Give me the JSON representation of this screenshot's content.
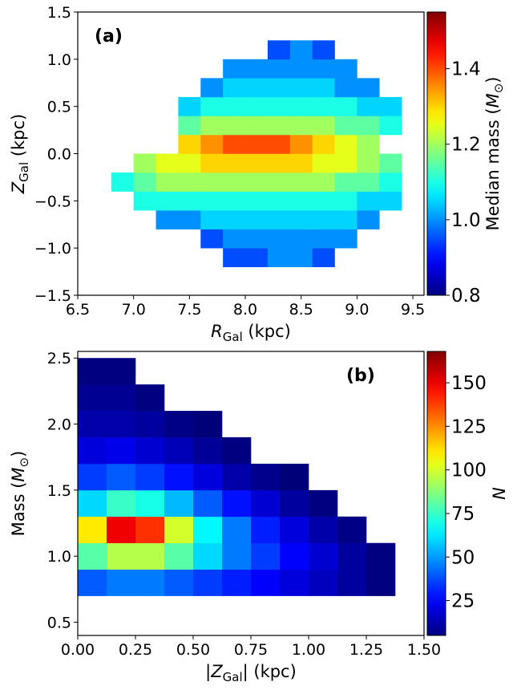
{
  "chart_data": [
    {
      "type": "heatmap",
      "colormap": "jet",
      "annotation": "(a)",
      "xlabel": [
        "R",
        "Gal",
        " (kpc)"
      ],
      "ylabel": [
        "Z",
        "Gal",
        " (kpc)"
      ],
      "colorbar_label": [
        "Median mass (",
        "M",
        "⊙",
        ")"
      ],
      "xlim": [
        6.5,
        9.6
      ],
      "ylim": [
        -1.5,
        1.5
      ],
      "xticks": [
        6.5,
        {
          "value": 7,
          "label": "7.0"
        },
        7.5,
        {
          "value": 8,
          "label": "8.0"
        },
        8.5,
        {
          "value": 9,
          "label": "9.0"
        },
        9.5
      ],
      "yticks": [
        {
          "value": -1.5,
          "label": "−1.5"
        },
        {
          "value": -1,
          "label": "−1.0"
        },
        {
          "value": -0.5,
          "label": "−0.5"
        },
        {
          "value": 0,
          "label": "0.0"
        },
        0.5,
        {
          "value": 1,
          "label": "1.0"
        },
        1.5
      ],
      "clim": [
        0.8,
        1.55
      ],
      "cticks": [
        0.8,
        {
          "value": 1,
          "label": "1.0"
        },
        1.2,
        1.4
      ],
      "x_edges": [
        6.8,
        7.0,
        7.2,
        7.4,
        7.6,
        7.8,
        8.0,
        8.2,
        8.4,
        8.6,
        8.8,
        9.0,
        9.2,
        9.4,
        9.6
      ],
      "y_edges": [
        -1.2,
        -1.0,
        -0.8,
        -0.6,
        -0.4,
        -0.2,
        0,
        0.2,
        0.4,
        0.6,
        0.8,
        1.0,
        1.2
      ],
      "z": [
        [
          null,
          null,
          null,
          null,
          null,
          0.95,
          0.95,
          1.0,
          1.0,
          0.95,
          null,
          null,
          null,
          null
        ],
        [
          null,
          null,
          null,
          null,
          0.95,
          1.0,
          1.0,
          1.0,
          1.0,
          1.0,
          1.0,
          null,
          null,
          null
        ],
        [
          null,
          null,
          1.0,
          1.0,
          1.05,
          1.05,
          1.05,
          1.05,
          1.05,
          1.05,
          1.05,
          1.0,
          null,
          null
        ],
        [
          null,
          1.1,
          1.1,
          1.1,
          1.1,
          1.1,
          1.1,
          1.1,
          1.1,
          1.1,
          1.1,
          1.05,
          1.05,
          null
        ],
        [
          1.1,
          1.15,
          1.2,
          1.2,
          1.2,
          1.2,
          1.2,
          1.2,
          1.2,
          1.2,
          1.15,
          1.15,
          1.1,
          null
        ],
        [
          null,
          1.2,
          1.25,
          1.25,
          1.3,
          1.3,
          1.3,
          1.3,
          1.3,
          1.25,
          1.25,
          1.2,
          1.15,
          null
        ],
        [
          null,
          null,
          null,
          1.3,
          1.35,
          1.4,
          1.4,
          1.4,
          1.35,
          1.3,
          1.25,
          1.2,
          null,
          null
        ],
        [
          null,
          null,
          null,
          1.15,
          1.2,
          1.2,
          1.2,
          1.2,
          1.2,
          1.2,
          1.15,
          1.15,
          1.1,
          null
        ],
        [
          null,
          null,
          null,
          1.05,
          1.1,
          1.1,
          1.1,
          1.1,
          1.1,
          1.1,
          1.1,
          1.05,
          1.05,
          null
        ],
        [
          null,
          null,
          null,
          null,
          1.0,
          1.05,
          1.05,
          1.05,
          1.05,
          1.05,
          1.0,
          1.0,
          null,
          null
        ],
        [
          null,
          null,
          null,
          null,
          null,
          1.0,
          1.0,
          1.0,
          1.0,
          1.0,
          1.0,
          null,
          null,
          null
        ],
        [
          null,
          null,
          null,
          null,
          null,
          null,
          null,
          0.95,
          1.0,
          0.95,
          null,
          null,
          null,
          null
        ]
      ]
    },
    {
      "type": "heatmap",
      "colormap": "jet",
      "annotation": "(b)",
      "xlabel": [
        "|",
        "Z",
        "Gal",
        "| (kpc)"
      ],
      "ylabel": [
        "Mass (",
        "M",
        "⊙",
        ")"
      ],
      "colorbar_label": [
        "N"
      ],
      "xlim": [
        0,
        1.5
      ],
      "ylim": [
        0.4,
        2.55
      ],
      "xticks": [
        {
          "value": 0,
          "label": "0.00"
        },
        {
          "value": 0.25,
          "label": "0.25"
        },
        {
          "value": 0.5,
          "label": "0.50"
        },
        {
          "value": 0.75,
          "label": "0.75"
        },
        {
          "value": 1,
          "label": "1.00"
        },
        {
          "value": 1.25,
          "label": "1.25"
        },
        {
          "value": 1.5,
          "label": "1.50"
        }
      ],
      "yticks": [
        0.5,
        {
          "value": 1,
          "label": "1.0"
        },
        1.5,
        {
          "value": 2,
          "label": "2.0"
        },
        2.5
      ],
      "clim": [
        5,
        168
      ],
      "cticks": [
        25,
        50,
        75,
        100,
        125,
        150
      ],
      "x_edges": [
        0,
        0.125,
        0.25,
        0.375,
        0.5,
        0.625,
        0.75,
        0.875,
        1.0,
        1.125,
        1.25,
        1.375,
        1.5
      ],
      "y_edges": [
        0.7,
        0.9,
        1.1,
        1.3,
        1.5,
        1.7,
        1.9,
        2.1,
        2.3,
        2.5
      ],
      "z": [
        [
          40,
          45,
          45,
          40,
          35,
          30,
          25,
          20,
          15,
          10,
          5,
          null
        ],
        [
          80,
          95,
          95,
          80,
          60,
          45,
          35,
          25,
          18,
          10,
          5,
          null
        ],
        [
          110,
          150,
          140,
          100,
          65,
          45,
          30,
          20,
          12,
          6,
          null,
          null
        ],
        [
          60,
          75,
          70,
          55,
          40,
          28,
          18,
          10,
          5,
          null,
          null,
          null
        ],
        [
          35,
          40,
          35,
          28,
          20,
          12,
          7,
          4,
          null,
          null,
          null,
          null
        ],
        [
          20,
          22,
          18,
          14,
          9,
          5,
          null,
          null,
          null,
          null,
          null,
          null
        ],
        [
          12,
          12,
          10,
          6,
          4,
          null,
          null,
          null,
          null,
          null,
          null,
          null
        ],
        [
          8,
          8,
          5,
          null,
          null,
          null,
          null,
          null,
          null,
          null,
          null,
          null
        ],
        [
          5,
          5,
          null,
          null,
          null,
          null,
          null,
          null,
          null,
          null,
          null,
          null
        ]
      ]
    }
  ]
}
